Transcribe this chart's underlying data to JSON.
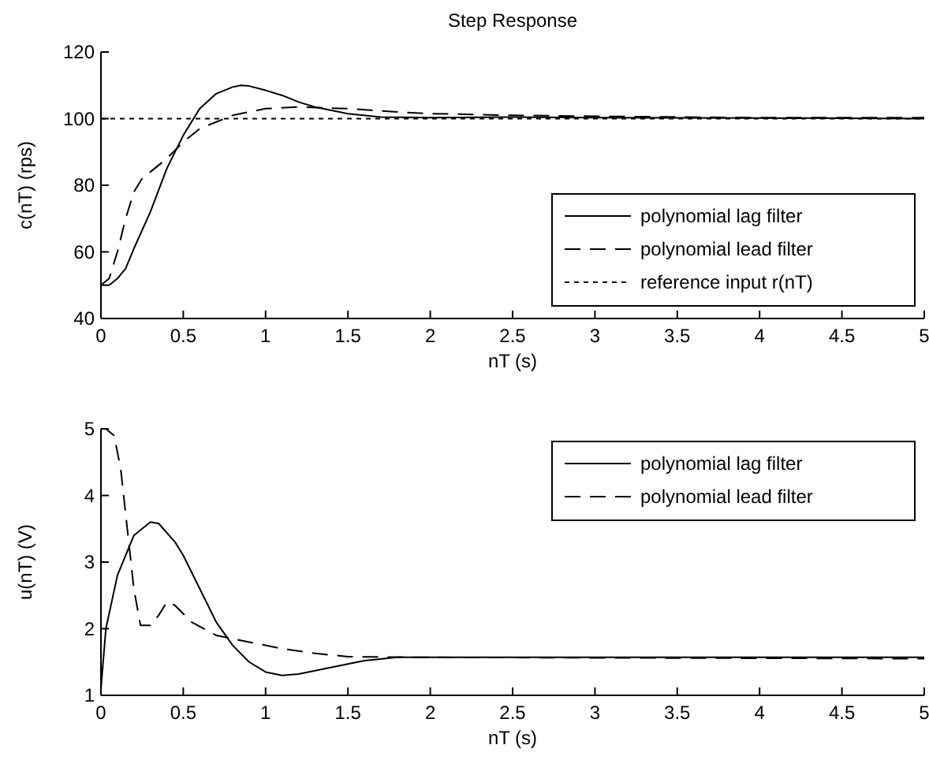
{
  "chart_data": [
    {
      "type": "line",
      "title": "Step Response",
      "xlabel": "nT (s)",
      "ylabel": "c(nT) (rps)",
      "xlim": [
        0,
        5
      ],
      "xticks": [
        0,
        0.5,
        1,
        1.5,
        2,
        2.5,
        3,
        3.5,
        4,
        4.5,
        5
      ],
      "ylim": [
        40,
        120
      ],
      "yticks": [
        40,
        60,
        80,
        100,
        120
      ],
      "legend": "bottom right",
      "series": [
        {
          "name": "polynomial lag filter",
          "color": "#000000",
          "line_style": "solid",
          "x": [
            0,
            0.05,
            0.1,
            0.15,
            0.2,
            0.3,
            0.4,
            0.5,
            0.6,
            0.7,
            0.8,
            0.85,
            0.9,
            1.0,
            1.1,
            1.2,
            1.3,
            1.5,
            1.7,
            2,
            2.5,
            3,
            4,
            5
          ],
          "values": [
            50,
            50,
            52,
            55,
            61,
            72,
            85,
            95,
            103,
            107.5,
            109.5,
            110,
            109.8,
            108.5,
            107,
            105,
            103.5,
            101.5,
            100.5,
            100.3,
            100.5,
            100.3,
            100.2,
            100
          ]
        },
        {
          "name": "polynomial lead filter",
          "color": "#000000",
          "line_style": "dashed",
          "x": [
            0,
            0.05,
            0.1,
            0.15,
            0.2,
            0.25,
            0.3,
            0.4,
            0.5,
            0.6,
            0.7,
            0.8,
            0.9,
            1.0,
            1.2,
            1.5,
            1.8,
            2,
            2.5,
            3,
            4,
            5
          ],
          "values": [
            50,
            52,
            60,
            70,
            78,
            82,
            84,
            88,
            93,
            97,
            99,
            101,
            102,
            103,
            103.5,
            103,
            102,
            101.5,
            101,
            100.7,
            100.3,
            100.3
          ]
        },
        {
          "name": "reference input r(nT)",
          "color": "#000000",
          "line_style": "dotted",
          "x": [
            0,
            5
          ],
          "values": [
            100,
            100
          ]
        }
      ]
    },
    {
      "type": "line",
      "xlabel": "nT (s)",
      "ylabel": "u(nT) (V)",
      "xlim": [
        0,
        5
      ],
      "xticks": [
        0,
        0.5,
        1,
        1.5,
        2,
        2.5,
        3,
        3.5,
        4,
        4.5,
        5
      ],
      "ylim": [
        1,
        5
      ],
      "yticks": [
        1,
        2,
        3,
        4,
        5
      ],
      "legend": "top right",
      "series": [
        {
          "name": "polynomial lag filter",
          "color": "#000000",
          "line_style": "solid",
          "x": [
            0,
            0.03,
            0.1,
            0.2,
            0.3,
            0.35,
            0.45,
            0.5,
            0.6,
            0.7,
            0.8,
            0.9,
            1.0,
            1.1,
            1.2,
            1.4,
            1.6,
            1.8,
            2,
            3,
            5
          ],
          "values": [
            1.1,
            2,
            2.8,
            3.4,
            3.6,
            3.58,
            3.3,
            3.1,
            2.6,
            2.1,
            1.75,
            1.5,
            1.35,
            1.3,
            1.32,
            1.42,
            1.52,
            1.57,
            1.57,
            1.57,
            1.57
          ]
        },
        {
          "name": "polynomial lead filter",
          "color": "#000000",
          "line_style": "dashed",
          "x": [
            0,
            0.03,
            0.08,
            0.12,
            0.16,
            0.2,
            0.24,
            0.3,
            0.35,
            0.4,
            0.45,
            0.55,
            0.7,
            0.9,
            1.1,
            1.3,
            1.5,
            2,
            5
          ],
          "values": [
            5,
            5,
            4.9,
            4.4,
            3.5,
            2.6,
            2.05,
            2.05,
            2.2,
            2.4,
            2.35,
            2.1,
            1.9,
            1.8,
            1.7,
            1.63,
            1.58,
            1.57,
            1.55
          ]
        }
      ]
    }
  ]
}
